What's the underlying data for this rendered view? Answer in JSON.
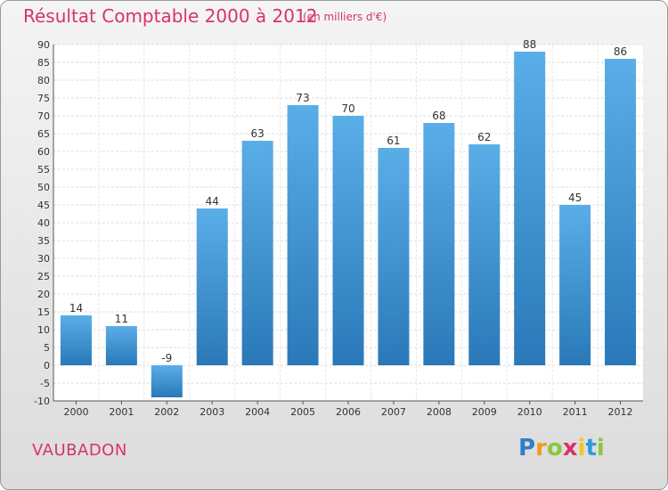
{
  "header": {
    "title": "Résultat Comptable 2000 à 2012",
    "subtitle": "(en milliers d'€)"
  },
  "footer": {
    "town": "VAUBADON",
    "logo_letters": [
      {
        "ch": "P",
        "color": "#2e7fc8"
      },
      {
        "ch": "r",
        "color": "#f29a1f"
      },
      {
        "ch": "o",
        "color": "#8cc63f"
      },
      {
        "ch": "x",
        "color": "#d7336b"
      },
      {
        "ch": "i",
        "color": "#f2c81f"
      },
      {
        "ch": "t",
        "color": "#2e9bd6"
      },
      {
        "ch": "i",
        "color": "#8cc63f"
      }
    ]
  },
  "chart_data": {
    "type": "bar",
    "categories": [
      "2000",
      "2001",
      "2002",
      "2003",
      "2004",
      "2005",
      "2006",
      "2007",
      "2008",
      "2009",
      "2010",
      "2011",
      "2012"
    ],
    "values": [
      14,
      11,
      -9,
      44,
      63,
      73,
      70,
      61,
      68,
      62,
      88,
      45,
      86
    ],
    "data_labels": [
      "14",
      "11",
      "-9",
      "44",
      "63",
      "73",
      "70",
      "61",
      "68",
      "62",
      "88",
      "45",
      "86"
    ],
    "ylim": [
      -10,
      90
    ],
    "ytick_step": 5,
    "grid": true,
    "bar_color_top": "#5aaee8",
    "bar_color_bottom": "#2a78b8"
  }
}
